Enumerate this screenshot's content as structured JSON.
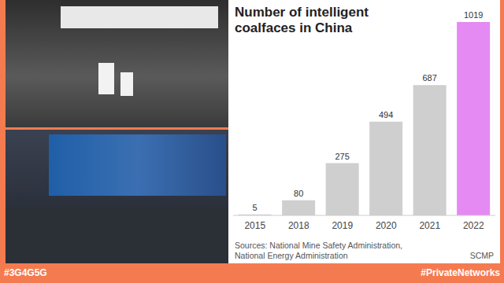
{
  "chart_data": {
    "type": "bar",
    "title": "Number of intelligent coalfaces in China",
    "categories": [
      "2015",
      "2018",
      "2019",
      "2020",
      "2021",
      "2022"
    ],
    "values": [
      5,
      80,
      275,
      494,
      687,
      1019
    ],
    "colors": [
      "#cfcfcf",
      "#cfcfcf",
      "#cfcfcf",
      "#cfcfcf",
      "#cfcfcf",
      "#e48af2"
    ],
    "ylim": [
      0,
      1019
    ],
    "data_labels": true,
    "tick_labels": "x",
    "grid": false,
    "source": "Sources: National Mine Safety Administration, National Energy Administration",
    "credit": "SCMP"
  },
  "footer": {
    "left": "#3G4G5G",
    "right": "#PrivateNetworks"
  }
}
